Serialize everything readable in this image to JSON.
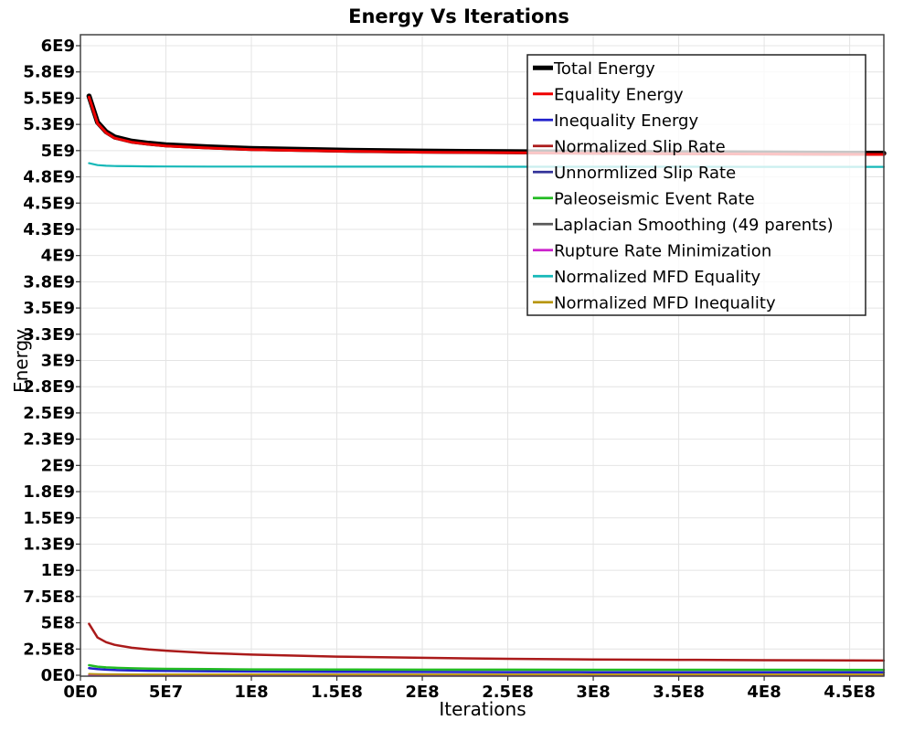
{
  "page": {
    "background": "#ffffff"
  },
  "chart_data": {
    "type": "line",
    "title": "Energy Vs Iterations",
    "xlabel": "Iterations",
    "ylabel": "Energy",
    "xlim": [
      0,
      470000000
    ],
    "ylim": [
      0,
      6000000000
    ],
    "grid": true,
    "legend_position": "inside-top-right",
    "colors": {
      "grid": "#e4e4e4",
      "axis_border": "#444444",
      "tick": "#333333",
      "legend_border": "#222222",
      "legend_background": "#ffffff"
    },
    "x_ticks": {
      "values": [
        0,
        50000000,
        100000000,
        150000000,
        200000000,
        250000000,
        300000000,
        350000000,
        400000000,
        450000000
      ],
      "labels": [
        "0E0",
        "5E7",
        "1E8",
        "1.5E8",
        "2E8",
        "2.5E8",
        "3E8",
        "3.5E8",
        "4E8",
        "4.5E8"
      ]
    },
    "y_ticks": {
      "values": [
        0,
        250000000,
        500000000,
        750000000,
        1000000000,
        1250000000,
        1500000000,
        1750000000,
        2000000000,
        2250000000,
        2500000000,
        2750000000,
        3000000000,
        3250000000,
        3500000000,
        3750000000,
        4000000000,
        4250000000,
        4500000000,
        4750000000,
        5000000000,
        5250000000,
        5500000000,
        5750000000,
        6000000000
      ],
      "labels": [
        "0E0",
        "2.5E8",
        "5E8",
        "7.5E8",
        "1E9",
        "1.3E9",
        "1.5E9",
        "1.8E9",
        "2E9",
        "2.3E9",
        "2.5E9",
        "2.8E9",
        "3E9",
        "3.3E9",
        "3.5E9",
        "3.8E9",
        "4E9",
        "4.3E9",
        "4.5E9",
        "4.8E9",
        "5E9",
        "5.3E9",
        "5.5E9",
        "5.8E9",
        "6E9"
      ]
    },
    "x": [
      5000000.0,
      10000000.0,
      15000000.0,
      20000000.0,
      30000000.0,
      40000000.0,
      50000000.0,
      75000000.0,
      100000000.0,
      150000000.0,
      200000000.0,
      250000000.0,
      300000000.0,
      350000000.0,
      400000000.0,
      450000000.0,
      470000000.0
    ],
    "series": [
      {
        "name": "Total Energy",
        "color": "#000000",
        "width": 5.5,
        "values": [
          5520000000.0,
          5270000000.0,
          5180000000.0,
          5130000000.0,
          5090000000.0,
          5070000000.0,
          5055000000.0,
          5035000000.0,
          5020000000.0,
          5005000000.0,
          4995000000.0,
          4990000000.0,
          4985000000.0,
          4980000000.0,
          4978000000.0,
          4975000000.0,
          4974000000.0
        ]
      },
      {
        "name": "Equality Energy",
        "color": "#ee0000",
        "width": 3,
        "values": [
          5510000000.0,
          5260000000.0,
          5170000000.0,
          5120000000.0,
          5080000000.0,
          5060000000.0,
          5045000000.0,
          5025000000.0,
          5010000000.0,
          4995000000.0,
          4985000000.0,
          4980000000.0,
          4975000000.0,
          4970000000.0,
          4968000000.0,
          4965000000.0,
          4964000000.0
        ]
      },
      {
        "name": "Inequality Energy",
        "color": "#2222cc",
        "width": 2.5,
        "values": [
          68000000.0,
          58000000.0,
          53000000.0,
          50000000.0,
          46000000.0,
          43000000.0,
          41000000.0,
          38000000.0,
          36000000.0,
          33000000.0,
          31000000.0,
          30000000.0,
          29000000.0,
          28500000.0,
          28000000.0,
          27500000.0,
          27000000.0
        ]
      },
      {
        "name": "Normalized Slip Rate",
        "color": "#aa1a1a",
        "width": 2.5,
        "values": [
          490000000.0,
          360000000.0,
          315000000.0,
          290000000.0,
          262000000.0,
          246000000.0,
          234000000.0,
          212000000.0,
          197000000.0,
          178000000.0,
          166000000.0,
          157000000.0,
          151000000.0,
          147000000.0,
          144000000.0,
          141000000.0,
          140000000.0
        ]
      },
      {
        "name": "Unnormlized Slip Rate",
        "color": "#333399",
        "width": 2,
        "values": [
          6000000.0,
          5200000.0,
          4900000.0,
          4700000.0,
          4500000.0,
          4400000.0,
          4300000.0,
          4200000.0,
          4100000.0,
          4050000.0,
          4000000.0,
          4000000.0,
          4000000.0,
          4000000.0,
          4000000.0,
          4000000.0,
          4000000.0
        ]
      },
      {
        "name": "Paleoseismic Event Rate",
        "color": "#22bb22",
        "width": 2.5,
        "values": [
          96000000.0,
          82000000.0,
          75000000.0,
          71000000.0,
          66000000.0,
          63000000.0,
          61000000.0,
          58000000.0,
          56000000.0,
          54500000.0,
          53500000.0,
          53000000.0,
          52500000.0,
          52200000.0,
          52000000.0,
          51800000.0,
          51700000.0
        ]
      },
      {
        "name": "Laplacian Smoothing (49 parents)",
        "color": "#595959",
        "width": 2,
        "values": [
          3000000.0,
          2900000.0,
          2800000.0,
          2800000.0,
          2700000.0,
          2700000.0,
          2600000.0,
          2600000.0,
          2600000.0,
          2500000.0,
          2500000.0,
          2500000.0,
          2500000.0,
          2500000.0,
          2500000.0,
          2500000.0,
          2500000.0
        ]
      },
      {
        "name": "Rupture Rate Minimization",
        "color": "#cc22cc",
        "width": 2,
        "values": [
          1800000.0,
          1700000.0,
          1700000.0,
          1600000.0,
          1600000.0,
          1600000.0,
          1500000.0,
          1500000.0,
          1500000.0,
          1500000.0,
          1500000.0,
          1500000.0,
          1500000.0,
          1500000.0,
          1500000.0,
          1500000.0,
          1500000.0
        ]
      },
      {
        "name": "Normalized MFD Equality",
        "color": "#16b8b8",
        "width": 2.2,
        "values": [
          4880000000.0,
          4862000000.0,
          4856000000.0,
          4853000000.0,
          4851000000.0,
          4850000000.0,
          4849000000.0,
          4848000000.0,
          4848000000.0,
          4847000000.0,
          4847000000.0,
          4846000000.0,
          4846000000.0,
          4846000000.0,
          4845000000.0,
          4845000000.0,
          4845000000.0
        ]
      },
      {
        "name": "Normalized MFD Inequality",
        "color": "#b8960f",
        "width": 2,
        "values": [
          13000000.0,
          11000000.0,
          10000000.0,
          9500000.0,
          9000000.0,
          8800000.0,
          8600000.0,
          8400000.0,
          8300000.0,
          8100000.0,
          8000000.0,
          8000000.0,
          7900000.0,
          7900000.0,
          7800000.0,
          7800000.0,
          7800000.0
        ]
      }
    ]
  }
}
